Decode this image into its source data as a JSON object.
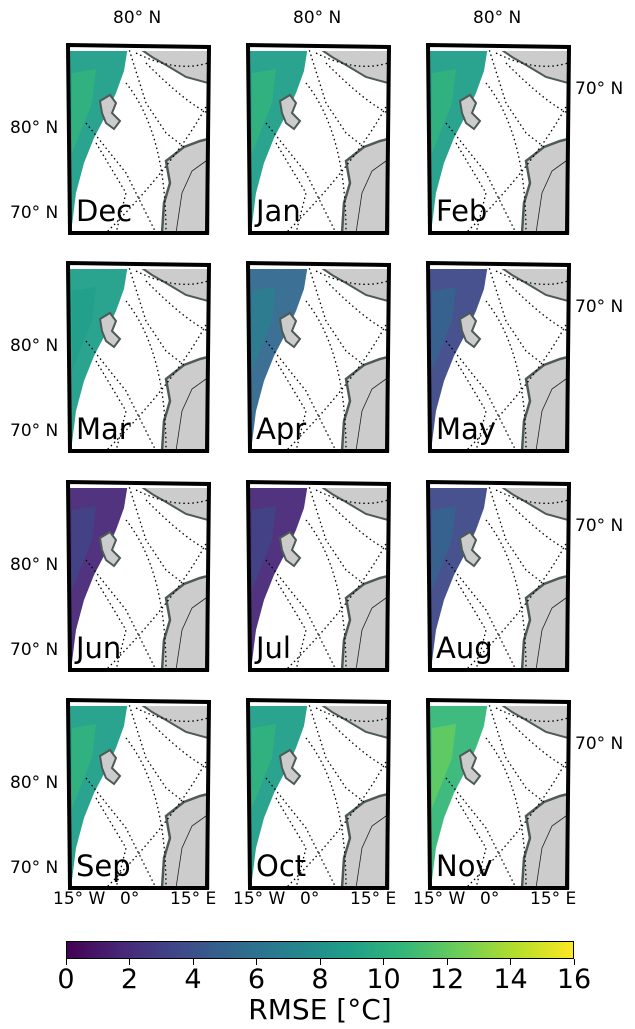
{
  "figure": {
    "top_lat_label": "80° N",
    "left_upper_label": "80° N",
    "left_lower_label": "70° N",
    "right_label": "70° N",
    "lon_labels": [
      "15° W",
      "0°",
      "15° E"
    ]
  },
  "months": [
    "Dec",
    "Jan",
    "Feb",
    "Mar",
    "Apr",
    "May",
    "Jun",
    "Jul",
    "Aug",
    "Sep",
    "Oct",
    "Nov"
  ],
  "month_rmse_level": [
    9,
    8.5,
    9,
    8,
    6,
    3,
    2,
    1.5,
    3,
    8.5,
    9.5,
    11
  ],
  "colorbar": {
    "title": "RMSE [°C]",
    "ticks": [
      "0",
      "2",
      "4",
      "6",
      "8",
      "10",
      "12",
      "14",
      "16"
    ],
    "min": 0,
    "max": 16,
    "colormap": "viridis",
    "colors": [
      "#440154",
      "#482878",
      "#3e4989",
      "#31688e",
      "#26828e",
      "#1f9e89",
      "#35b779",
      "#6ece58",
      "#b5de2b",
      "#fde725"
    ]
  },
  "colors": {
    "land": "#cccccc",
    "coast": "#4d5a55",
    "frame": "#000000"
  }
}
